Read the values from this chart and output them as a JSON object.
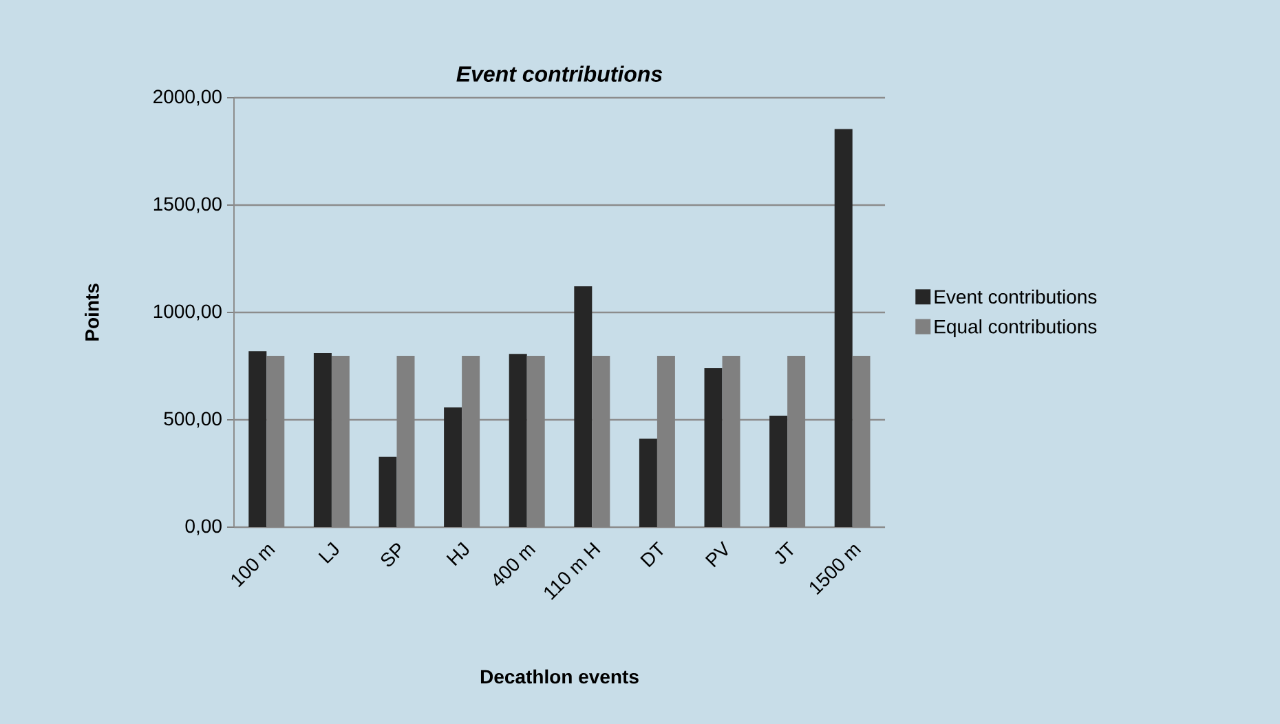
{
  "chart_data": {
    "type": "bar",
    "title": "Event contributions",
    "xlabel": "Decathlon events",
    "ylabel": "Points",
    "categories": [
      "100 m",
      "LJ",
      "SP",
      "HJ",
      "400 m",
      "110 m H",
      "DT",
      "PV",
      "JT",
      "1500 m"
    ],
    "series": [
      {
        "name": "Event contributions",
        "color": "#262626",
        "values": [
          820,
          811,
          328,
          558,
          807,
          1122,
          412,
          740,
          519,
          1854
        ]
      },
      {
        "name": "Equal contributions",
        "color": "#808080",
        "values": [
          798,
          798,
          798,
          798,
          798,
          798,
          798,
          798,
          798,
          798
        ]
      }
    ],
    "ylim": [
      0,
      2000
    ],
    "yticks": [
      {
        "value": 0,
        "label": "0,00"
      },
      {
        "value": 500,
        "label": "500,00"
      },
      {
        "value": 1000,
        "label": "1000,00"
      },
      {
        "value": 1500,
        "label": "1500,00"
      },
      {
        "value": 2000,
        "label": "2000,00"
      }
    ],
    "grid": "y",
    "legend": "right"
  }
}
